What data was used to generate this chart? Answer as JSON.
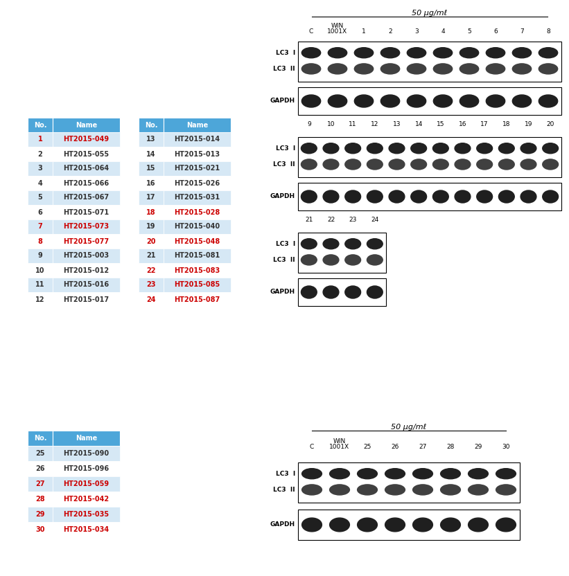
{
  "table1_left": {
    "headers": [
      "No.",
      "Name"
    ],
    "rows": [
      [
        1,
        "HT2015-049",
        true
      ],
      [
        2,
        "HT2015-055",
        false
      ],
      [
        3,
        "HT2015-064",
        false
      ],
      [
        4,
        "HT2015-066",
        false
      ],
      [
        5,
        "HT2015-067",
        false
      ],
      [
        6,
        "HT2015-071",
        false
      ],
      [
        7,
        "HT2015-073",
        true
      ],
      [
        8,
        "HT2015-077",
        true
      ],
      [
        9,
        "HT2015-003",
        false
      ],
      [
        10,
        "HT2015-012",
        false
      ],
      [
        11,
        "HT2015-016",
        false
      ],
      [
        12,
        "HT2015-017",
        false
      ]
    ]
  },
  "table1_right": {
    "headers": [
      "No.",
      "Name"
    ],
    "rows": [
      [
        13,
        "HT2015-014",
        false
      ],
      [
        14,
        "HT2015-013",
        false
      ],
      [
        15,
        "HT2015-021",
        false
      ],
      [
        16,
        "HT2015-026",
        false
      ],
      [
        17,
        "HT2015-031",
        false
      ],
      [
        18,
        "HT2015-028",
        true
      ],
      [
        19,
        "HT2015-040",
        false
      ],
      [
        20,
        "HT2015-048",
        true
      ],
      [
        21,
        "HT2015-081",
        false
      ],
      [
        22,
        "HT2015-083",
        true
      ],
      [
        23,
        "HT2015-085",
        true
      ],
      [
        24,
        "HT2015-087",
        true
      ]
    ]
  },
  "table2": {
    "headers": [
      "No.",
      "Name"
    ],
    "rows": [
      [
        25,
        "HT2015-090",
        false
      ],
      [
        26,
        "HT2015-096",
        false
      ],
      [
        27,
        "HT2015-059",
        true
      ],
      [
        28,
        "HT2015-042",
        true
      ],
      [
        29,
        "HT2015-035",
        true
      ],
      [
        30,
        "HT2015-034",
        true
      ]
    ]
  },
  "header_bg": "#4DA6D9",
  "row_bg_odd": "#D6E8F5",
  "row_bg_even": "#FFFFFF",
  "header_text_color": "#FFFFFF",
  "normal_text_color": "#333333",
  "red_text_color": "#CC0000",
  "title_50ugml": "50 μg/mℓ",
  "lane_labels_1": [
    "C",
    "WIN\n1001X",
    "1",
    "2",
    "3",
    "4",
    "5",
    "6",
    "7",
    "8"
  ],
  "lane_labels_2": [
    "9",
    "10",
    "11",
    "12",
    "13",
    "14",
    "15",
    "16",
    "17",
    "18",
    "19",
    "20"
  ],
  "lane_labels_3": [
    "21",
    "22",
    "23",
    "24"
  ],
  "lane_labels_4": [
    "C",
    "WIN\n1001X",
    "25",
    "26",
    "27",
    "28",
    "29",
    "30"
  ],
  "bg_color": "#FFFFFF"
}
